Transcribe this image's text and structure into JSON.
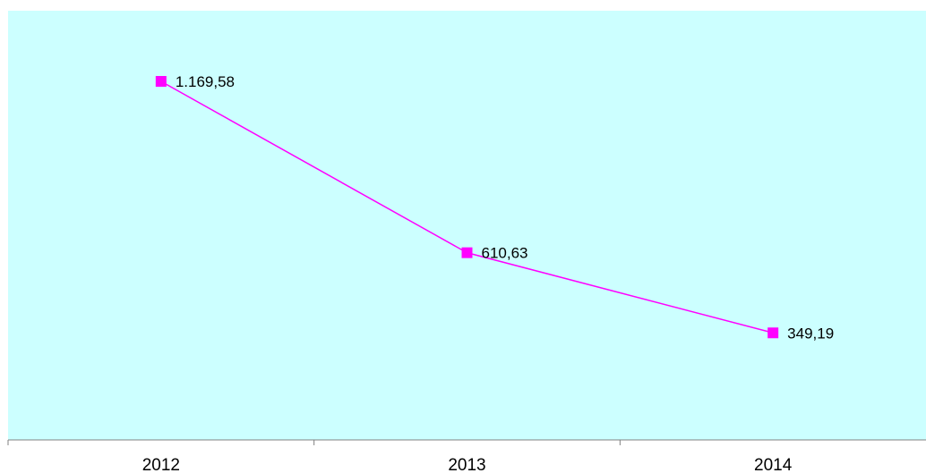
{
  "chart_data": {
    "type": "line",
    "categories": [
      "2012",
      "2013",
      "2014"
    ],
    "series": [
      {
        "values": [
          1169.58,
          610.63,
          349.19
        ],
        "labels": [
          "1.169,58",
          "610,63",
          "349,19"
        ],
        "color": "#ff00ff",
        "marker": "square"
      }
    ],
    "ylim": [
      0,
      1400
    ],
    "plot_background": "#ccffff",
    "grid": false,
    "legend": "none"
  }
}
